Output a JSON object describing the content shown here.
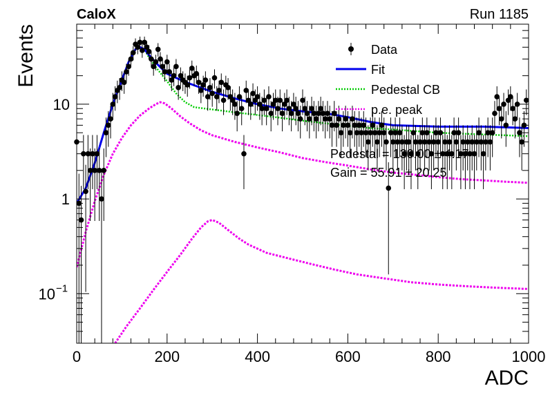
{
  "header": {
    "experiment": "CaloX",
    "run_label": "Run 1185"
  },
  "chart_data": {
    "type": "scatter",
    "xlabel": "ADC",
    "ylabel": "Events",
    "xlim": [
      0,
      1000
    ],
    "ylim": [
      0.03,
      70
    ],
    "yscale": "log",
    "grid": false,
    "legend_position": "top-right",
    "x_ticks": [
      "0",
      "200",
      "400",
      "600",
      "800",
      "1000"
    ],
    "y_ticks": [
      {
        "value": 0.1,
        "base": "10",
        "exp": "−1"
      },
      {
        "value": 1,
        "label": "1"
      },
      {
        "value": 10,
        "label": "10"
      }
    ],
    "legend": [
      {
        "key": "data",
        "label": "Data",
        "style": "marker",
        "color": "#000000"
      },
      {
        "key": "fit",
        "label": "Fit",
        "style": "line",
        "color": "#0000ee"
      },
      {
        "key": "pedestal",
        "label": "Pedestal CB",
        "style": "dotted",
        "color": "#00cc00"
      },
      {
        "key": "pe",
        "label": "p.e. peak",
        "style": "dotted",
        "color": "#ee00ee"
      }
    ],
    "annotations": [
      "Pedestal = 130.00 ± 4.17",
      "Gain = 55.91 ± 20.25"
    ],
    "series": {
      "data": [
        [
          0,
          4
        ],
        [
          5,
          0.9
        ],
        [
          10,
          0.6
        ],
        [
          15,
          3
        ],
        [
          20,
          1.2
        ],
        [
          25,
          3
        ],
        [
          30,
          2
        ],
        [
          35,
          3
        ],
        [
          40,
          2
        ],
        [
          45,
          3
        ],
        [
          50,
          2
        ],
        [
          55,
          1
        ],
        [
          60,
          2
        ],
        [
          65,
          5
        ],
        [
          70,
          6
        ],
        [
          75,
          7
        ],
        [
          80,
          10
        ],
        [
          85,
          12
        ],
        [
          90,
          14
        ],
        [
          95,
          15
        ],
        [
          100,
          18
        ],
        [
          105,
          17
        ],
        [
          110,
          22
        ],
        [
          115,
          25
        ],
        [
          120,
          30
        ],
        [
          125,
          35
        ],
        [
          130,
          43
        ],
        [
          135,
          40
        ],
        [
          140,
          45
        ],
        [
          145,
          37
        ],
        [
          150,
          45
        ],
        [
          155,
          40
        ],
        [
          160,
          36
        ],
        [
          165,
          30
        ],
        [
          170,
          25
        ],
        [
          175,
          28
        ],
        [
          180,
          38
        ],
        [
          185,
          30
        ],
        [
          190,
          25
        ],
        [
          195,
          22
        ],
        [
          200,
          28
        ],
        [
          205,
          22
        ],
        [
          210,
          18
        ],
        [
          215,
          20
        ],
        [
          220,
          25
        ],
        [
          225,
          15
        ],
        [
          230,
          20
        ],
        [
          235,
          18
        ],
        [
          240,
          17
        ],
        [
          245,
          16
        ],
        [
          250,
          19
        ],
        [
          255,
          24
        ],
        [
          260,
          20
        ],
        [
          265,
          21
        ],
        [
          270,
          17
        ],
        [
          275,
          14
        ],
        [
          280,
          16
        ],
        [
          285,
          18
        ],
        [
          290,
          12
        ],
        [
          295,
          15
        ],
        [
          300,
          13
        ],
        [
          305,
          19
        ],
        [
          310,
          12
        ],
        [
          315,
          14
        ],
        [
          320,
          17
        ],
        [
          325,
          11
        ],
        [
          330,
          16
        ],
        [
          335,
          15
        ],
        [
          340,
          12
        ],
        [
          345,
          11
        ],
        [
          350,
          10
        ],
        [
          355,
          8
        ],
        [
          360,
          12
        ],
        [
          365,
          9
        ],
        [
          370,
          3
        ],
        [
          375,
          14
        ],
        [
          380,
          11
        ],
        [
          385,
          10
        ],
        [
          390,
          13
        ],
        [
          395,
          11
        ],
        [
          400,
          12
        ],
        [
          405,
          10
        ],
        [
          410,
          9
        ],
        [
          415,
          11
        ],
        [
          420,
          9
        ],
        [
          425,
          12
        ],
        [
          430,
          8
        ],
        [
          435,
          10
        ],
        [
          440,
          11
        ],
        [
          445,
          9
        ],
        [
          450,
          11
        ],
        [
          455,
          8
        ],
        [
          460,
          10
        ],
        [
          465,
          11
        ],
        [
          470,
          9
        ],
        [
          475,
          8
        ],
        [
          480,
          10
        ],
        [
          485,
          9
        ],
        [
          490,
          8
        ],
        [
          495,
          7
        ],
        [
          500,
          11
        ],
        [
          505,
          9
        ],
        [
          510,
          8
        ],
        [
          515,
          7
        ],
        [
          520,
          9
        ],
        [
          525,
          8
        ],
        [
          530,
          7
        ],
        [
          535,
          8
        ],
        [
          540,
          9
        ],
        [
          545,
          8
        ],
        [
          550,
          7
        ],
        [
          555,
          8
        ],
        [
          560,
          7
        ],
        [
          565,
          6
        ],
        [
          570,
          8
        ],
        [
          575,
          6
        ],
        [
          580,
          7
        ],
        [
          585,
          5
        ],
        [
          590,
          6
        ],
        [
          595,
          7
        ],
        [
          600,
          6
        ],
        [
          605,
          5
        ],
        [
          610,
          7
        ],
        [
          615,
          6
        ],
        [
          620,
          5
        ],
        [
          625,
          6
        ],
        [
          630,
          5
        ],
        [
          635,
          6
        ],
        [
          640,
          5
        ],
        [
          645,
          4
        ],
        [
          650,
          5
        ],
        [
          655,
          6
        ],
        [
          660,
          5
        ],
        [
          665,
          4
        ],
        [
          670,
          5
        ],
        [
          675,
          6
        ],
        [
          680,
          5
        ],
        [
          685,
          4
        ],
        [
          690,
          1.3
        ],
        [
          695,
          5
        ],
        [
          700,
          4
        ],
        [
          705,
          5
        ],
        [
          710,
          4
        ],
        [
          715,
          5
        ],
        [
          720,
          4
        ],
        [
          725,
          3
        ],
        [
          730,
          4
        ],
        [
          735,
          4
        ],
        [
          740,
          3
        ],
        [
          745,
          5
        ],
        [
          750,
          4
        ],
        [
          755,
          3
        ],
        [
          760,
          4
        ],
        [
          765,
          5
        ],
        [
          770,
          4
        ],
        [
          775,
          5
        ],
        [
          780,
          4
        ],
        [
          785,
          3
        ],
        [
          790,
          4
        ],
        [
          795,
          5
        ],
        [
          800,
          4
        ],
        [
          805,
          5
        ],
        [
          810,
          3
        ],
        [
          815,
          4
        ],
        [
          820,
          3
        ],
        [
          825,
          4
        ],
        [
          830,
          3
        ],
        [
          835,
          5
        ],
        [
          840,
          4
        ],
        [
          845,
          5
        ],
        [
          850,
          3
        ],
        [
          855,
          4
        ],
        [
          860,
          3
        ],
        [
          865,
          4
        ],
        [
          870,
          3
        ],
        [
          875,
          4
        ],
        [
          880,
          3
        ],
        [
          885,
          4
        ],
        [
          890,
          5
        ],
        [
          895,
          4
        ],
        [
          900,
          3
        ],
        [
          905,
          4
        ],
        [
          910,
          5
        ],
        [
          915,
          4
        ],
        [
          920,
          5
        ],
        [
          925,
          8
        ],
        [
          930,
          12
        ],
        [
          935,
          9
        ],
        [
          940,
          7
        ],
        [
          945,
          10
        ],
        [
          950,
          6
        ],
        [
          955,
          11
        ],
        [
          960,
          12
        ],
        [
          965,
          9
        ],
        [
          970,
          7
        ],
        [
          975,
          10
        ],
        [
          980,
          5
        ],
        [
          985,
          4
        ],
        [
          990,
          6
        ],
        [
          995,
          11
        ]
      ],
      "fit": [
        [
          0,
          0.9
        ],
        [
          20,
          1.3
        ],
        [
          40,
          2.4
        ],
        [
          60,
          5
        ],
        [
          80,
          10
        ],
        [
          100,
          18
        ],
        [
          115,
          28
        ],
        [
          130,
          38
        ],
        [
          140,
          40
        ],
        [
          150,
          38
        ],
        [
          160,
          33
        ],
        [
          180,
          26
        ],
        [
          200,
          21
        ],
        [
          220,
          19
        ],
        [
          250,
          16.5
        ],
        [
          300,
          13.5
        ],
        [
          350,
          11.5
        ],
        [
          400,
          10
        ],
        [
          450,
          9
        ],
        [
          500,
          8.4
        ],
        [
          560,
          7.9
        ],
        [
          600,
          7.3
        ],
        [
          650,
          6.5
        ],
        [
          700,
          6.0
        ],
        [
          800,
          5.8
        ],
        [
          900,
          5.8
        ],
        [
          1000,
          5.6
        ]
      ],
      "pedestal": [
        [
          0,
          0.9
        ],
        [
          20,
          1.3
        ],
        [
          40,
          2.4
        ],
        [
          60,
          5
        ],
        [
          80,
          10
        ],
        [
          100,
          18
        ],
        [
          115,
          28
        ],
        [
          130,
          38
        ],
        [
          140,
          40
        ],
        [
          150,
          38
        ],
        [
          160,
          31
        ],
        [
          180,
          23
        ],
        [
          200,
          17.5
        ],
        [
          220,
          13
        ],
        [
          240,
          10.5
        ],
        [
          260,
          9.3
        ],
        [
          300,
          8.8
        ],
        [
          350,
          8.2
        ],
        [
          400,
          7.7
        ],
        [
          450,
          7.2
        ],
        [
          500,
          6.7
        ],
        [
          550,
          6.3
        ],
        [
          600,
          5.9
        ],
        [
          650,
          5.6
        ],
        [
          700,
          5.4
        ],
        [
          800,
          5.0
        ],
        [
          900,
          4.8
        ],
        [
          1000,
          4.6
        ]
      ],
      "pe_peak_1": [
        [
          0,
          0.19
        ],
        [
          20,
          0.45
        ],
        [
          40,
          0.95
        ],
        [
          60,
          1.8
        ],
        [
          80,
          3.0
        ],
        [
          100,
          4.4
        ],
        [
          120,
          6.0
        ],
        [
          140,
          7.6
        ],
        [
          160,
          9.0
        ],
        [
          175,
          10.0
        ],
        [
          185,
          10.5
        ],
        [
          195,
          10.2
        ],
        [
          210,
          9.0
        ],
        [
          230,
          7.4
        ],
        [
          250,
          6.3
        ],
        [
          275,
          5.3
        ],
        [
          300,
          4.7
        ],
        [
          350,
          4.0
        ],
        [
          400,
          3.5
        ],
        [
          450,
          3.1
        ],
        [
          500,
          2.7
        ],
        [
          550,
          2.45
        ],
        [
          600,
          2.25
        ],
        [
          650,
          2.05
        ],
        [
          700,
          1.9
        ],
        [
          750,
          1.8
        ],
        [
          800,
          1.7
        ],
        [
          850,
          1.62
        ],
        [
          900,
          1.57
        ],
        [
          950,
          1.52
        ],
        [
          1000,
          1.48
        ]
      ],
      "pe_peak_2": [
        [
          85,
          0.03
        ],
        [
          110,
          0.045
        ],
        [
          140,
          0.07
        ],
        [
          170,
          0.11
        ],
        [
          200,
          0.17
        ],
        [
          230,
          0.26
        ],
        [
          255,
          0.38
        ],
        [
          275,
          0.5
        ],
        [
          290,
          0.58
        ],
        [
          300,
          0.6
        ],
        [
          315,
          0.56
        ],
        [
          335,
          0.47
        ],
        [
          360,
          0.38
        ],
        [
          380,
          0.33
        ],
        [
          420,
          0.27
        ],
        [
          470,
          0.235
        ],
        [
          520,
          0.205
        ],
        [
          570,
          0.18
        ],
        [
          620,
          0.16
        ],
        [
          680,
          0.145
        ],
        [
          740,
          0.132
        ],
        [
          800,
          0.125
        ],
        [
          860,
          0.12
        ],
        [
          920,
          0.116
        ],
        [
          1000,
          0.112
        ]
      ]
    }
  }
}
